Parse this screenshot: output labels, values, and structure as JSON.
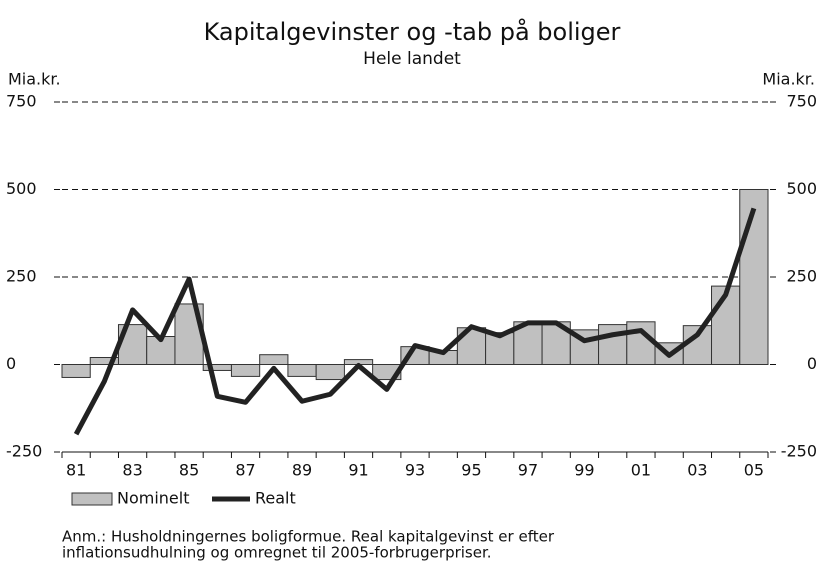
{
  "chart_data": {
    "type": "bar_line",
    "title": "Kapitalgevinster og -tab på boliger",
    "subtitle": "Hele landet",
    "y_label": "Mia.kr.",
    "y2_label": "Mia.kr.",
    "categories": [
      "81",
      null,
      "83",
      null,
      "85",
      null,
      "87",
      null,
      "89",
      null,
      "91",
      null,
      "93",
      null,
      "95",
      null,
      "97",
      null,
      "99",
      null,
      "01",
      null,
      "03",
      null,
      "05"
    ],
    "series": [
      {
        "name": "Nominelt",
        "type": "bar",
        "color": "#c0c0c0",
        "values": [
          -37,
          20,
          114,
          80,
          173,
          -17,
          -34,
          28,
          -34,
          -43,
          14,
          -43,
          51,
          40,
          105,
          91,
          122,
          122,
          99,
          114,
          122,
          62,
          111,
          224,
          500
        ]
      },
      {
        "name": "Realt",
        "type": "line",
        "color": "#222222",
        "values": [
          -199,
          -48,
          156,
          71,
          244,
          -91,
          -108,
          -11,
          -105,
          -85,
          -3,
          -71,
          54,
          34,
          108,
          82,
          119,
          119,
          68,
          85,
          97,
          26,
          85,
          199,
          446
        ]
      }
    ],
    "ylim": [
      -250,
      750
    ],
    "yticks": [
      -250,
      0,
      250,
      500,
      750
    ],
    "y2lim": [
      -250,
      750
    ],
    "y2ticks": [
      -250,
      0,
      250,
      500,
      750
    ],
    "grid": true,
    "legend": "bottom-left",
    "note": [
      "Anm.: Husholdningernes boligformue. Real kapitalgevinst er efter",
      "inflationsudhulning og omregnet til 2005-forbrugerpriser."
    ]
  }
}
